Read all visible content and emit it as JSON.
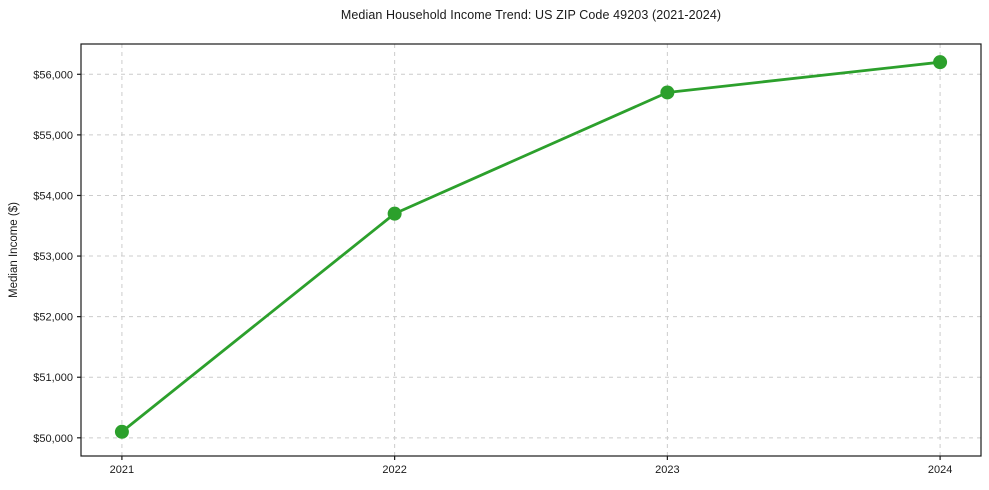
{
  "chart_data": {
    "type": "line",
    "title": "Median Household Income Trend: US ZIP Code 49203 (2021-2024)",
    "xlabel": "",
    "ylabel": "Median Income ($)",
    "x": [
      2021,
      2022,
      2023,
      2024
    ],
    "x_tick_labels": [
      "2021",
      "2022",
      "2023",
      "2024"
    ],
    "series": [
      {
        "name": "Median Household Income",
        "values": [
          50100,
          53700,
          55700,
          56200
        ]
      }
    ],
    "y_ticks": [
      50000,
      51000,
      52000,
      53000,
      54000,
      55000,
      56000
    ],
    "y_tick_labels": [
      "$50,000",
      "$51,000",
      "$52,000",
      "$53,000",
      "$54,000",
      "$55,000",
      "$56,000"
    ],
    "xlim": [
      2020.85,
      2024.15
    ],
    "ylim": [
      49700,
      56500
    ],
    "grid": "on",
    "grid_style": "dashed",
    "legend": "none",
    "colors": {
      "line": "#2ca02c",
      "marker": "#2ca02c",
      "grid": "#cccccc",
      "axis": "#1a1a1a",
      "text": "#1a1a1a",
      "background": "#ffffff"
    }
  }
}
